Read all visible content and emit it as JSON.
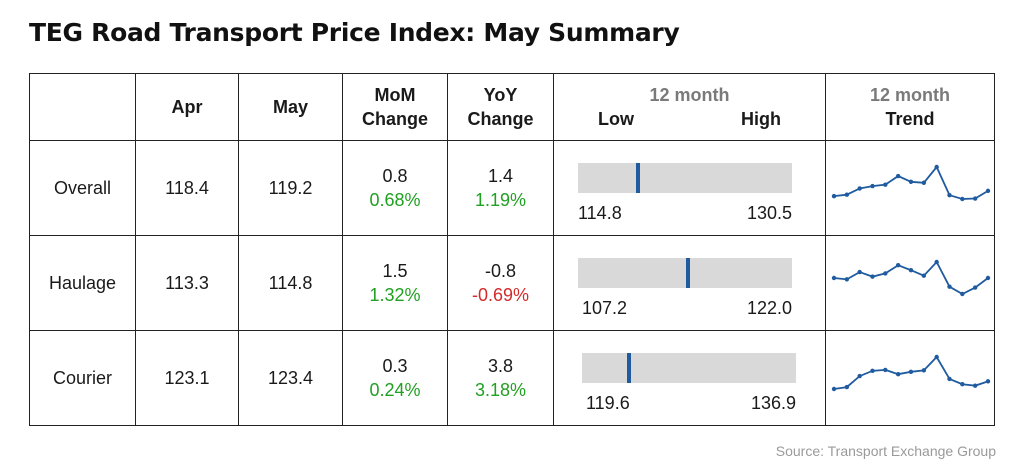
{
  "title": "TEG Road Transport Price Index: May Summary",
  "headers": {
    "apr": "Apr",
    "may": "May",
    "mom_line1": "MoM",
    "mom_line2": "Change",
    "yoy_line1": "YoY",
    "yoy_line2": "Change",
    "range_top": "12 month",
    "range_low": "Low",
    "range_high": "High",
    "trend_top": "12 month",
    "trend_bottom": "Trend"
  },
  "source": "Source: Transport Exchange Group",
  "colors": {
    "positive": "#21a021",
    "negative": "#d32b2b",
    "marker": "#1f5b9e",
    "range_bar": "#d9d9d9",
    "trend_line": "#1f5b9e"
  },
  "chart_data": {
    "type": "table",
    "title": "TEG Road Transport Price Index: May Summary",
    "columns": [
      "Apr",
      "May",
      "MoM Change",
      "YoY Change",
      "12 month Low",
      "12 month High",
      "12 month Trend"
    ],
    "rows": [
      {
        "name": "Overall",
        "apr": "118.4",
        "may": "119.2",
        "mom": "0.8",
        "mom_pct": "0.68%",
        "yoy": "1.4",
        "yoy_pct": "1.19%",
        "low": "114.8",
        "high": "130.5",
        "current": 119.2,
        "trend": [
          115.4,
          115.7,
          117.0,
          117.5,
          117.8,
          119.6,
          118.4,
          118.2,
          121.5,
          115.6,
          114.8,
          114.9,
          116.5
        ]
      },
      {
        "name": "Haulage",
        "apr": "113.3",
        "may": "114.8",
        "mom": "1.5",
        "mom_pct": "1.32%",
        "yoy": "-0.8",
        "yoy_pct": "-0.69%",
        "low": "107.2",
        "high": "122.0",
        "current": 114.8,
        "trend": [
          109.5,
          109.2,
          110.8,
          109.8,
          110.5,
          112.3,
          111.2,
          110.0,
          113.0,
          107.6,
          106.0,
          107.4,
          109.5
        ]
      },
      {
        "name": "Courier",
        "apr": "123.1",
        "may": "123.4",
        "mom": "0.3",
        "mom_pct": "0.24%",
        "yoy": "3.8",
        "yoy_pct": "3.18%",
        "low": "119.6",
        "high": "136.9",
        "current": 123.4,
        "trend": [
          121.8,
          122.2,
          124.5,
          125.6,
          125.8,
          124.9,
          125.4,
          125.7,
          128.5,
          123.9,
          122.8,
          122.5,
          123.4
        ]
      }
    ]
  }
}
